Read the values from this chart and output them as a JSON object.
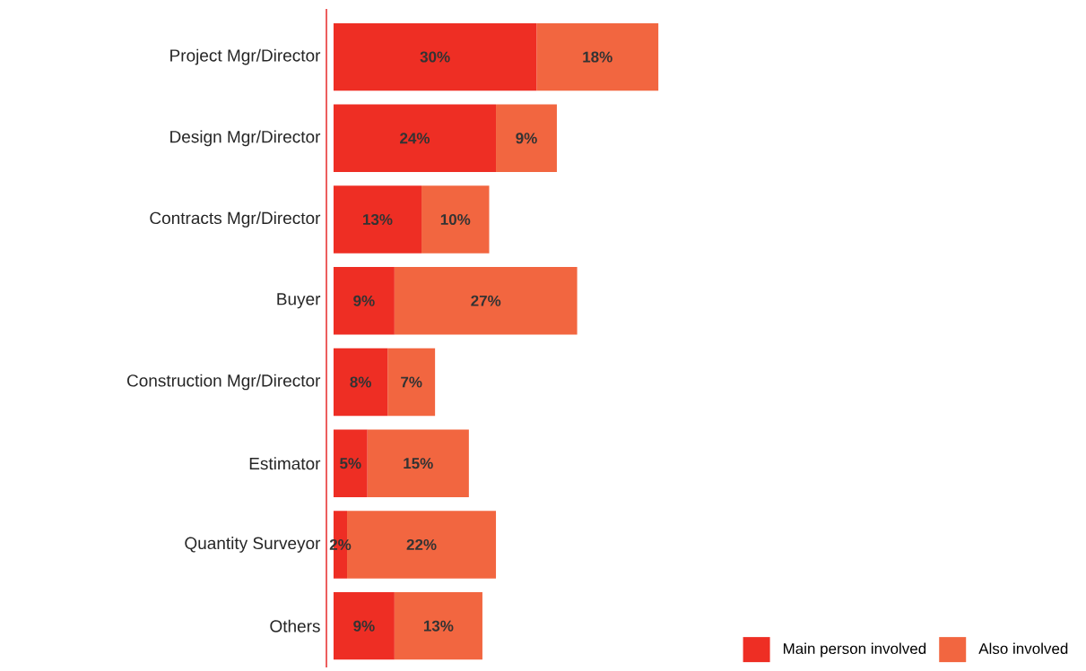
{
  "chart_data": {
    "type": "bar",
    "orientation": "horizontal",
    "stacked": true,
    "legend": "bottom right",
    "categories": [
      "Project Mgr/Director",
      "Design Mgr/Director",
      "Contracts Mgr/Director",
      "Buyer",
      "Construction Mgr/Director",
      "Estimator",
      "Quantity Surveyor",
      "Others"
    ],
    "series": [
      {
        "name": "Main person involved",
        "color": "#ee2e24",
        "values": [
          30,
          24,
          13,
          9,
          8,
          5,
          2,
          9
        ],
        "value_labels": [
          "30%",
          "24%",
          "13%",
          "9%",
          "8%",
          "5%",
          "2%",
          "9%"
        ]
      },
      {
        "name": "Also involved",
        "color": "#f26640",
        "values": [
          18,
          9,
          10,
          27,
          7,
          15,
          22,
          13
        ],
        "value_labels": [
          "18%",
          "9%",
          "10%",
          "27%",
          "7%",
          "15%",
          "22%",
          "13%"
        ]
      }
    ]
  }
}
